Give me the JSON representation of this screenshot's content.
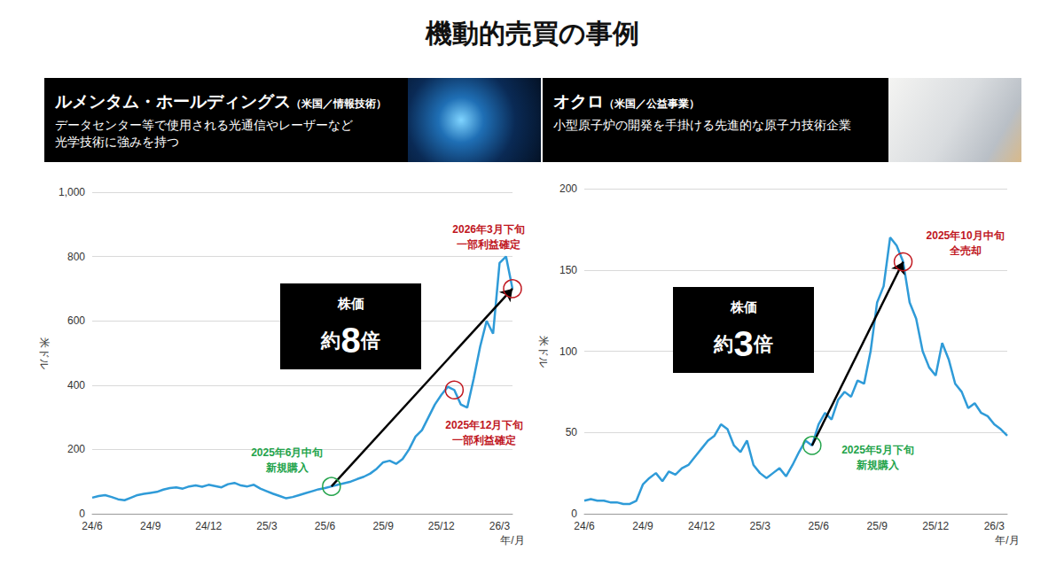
{
  "title": "機動的売買の事例",
  "chart_data": [
    {
      "type": "line",
      "title": "ルメンタム・ホールディングス",
      "title_note": "（米国／情報技術）",
      "subtitle": [
        "データセンター等で使用される光通信やレーザーなど",
        "光学技術に強みを持つ"
      ],
      "x_label": "年/月",
      "y_label": "米ドル",
      "categories": [
        "24/6",
        null,
        null,
        null,
        null,
        null,
        null,
        null,
        null,
        "24/9",
        null,
        null,
        null,
        null,
        null,
        null,
        null,
        null,
        "24/12",
        null,
        null,
        null,
        null,
        null,
        null,
        null,
        null,
        "25/3",
        null,
        null,
        null,
        null,
        null,
        null,
        null,
        null,
        "25/6",
        null,
        null,
        null,
        null,
        null,
        null,
        null,
        null,
        "25/9",
        null,
        null,
        null,
        null,
        null,
        null,
        null,
        null,
        "25/12",
        null,
        null,
        null,
        null,
        null,
        null,
        null,
        null,
        "26/3",
        null,
        null
      ],
      "values": [
        50,
        55,
        58,
        52,
        45,
        42,
        50,
        58,
        62,
        65,
        68,
        75,
        80,
        82,
        78,
        85,
        88,
        84,
        90,
        86,
        82,
        92,
        96,
        88,
        85,
        90,
        78,
        70,
        62,
        55,
        48,
        52,
        58,
        64,
        70,
        76,
        80,
        85,
        90,
        95,
        100,
        108,
        115,
        125,
        140,
        160,
        165,
        155,
        170,
        200,
        240,
        260,
        300,
        340,
        370,
        395,
        385,
        340,
        330,
        420,
        520,
        600,
        560,
        780,
        800,
        700
      ],
      "color": "#2f9bd8",
      "ylim": [
        0,
        1000
      ],
      "yticks": [
        0,
        200,
        400,
        600,
        800,
        {
          "value": 1000,
          "label": "1,000"
        }
      ],
      "grid": true,
      "annotations": [
        {
          "index": 37,
          "color": "#22a34a",
          "text": [
            "2025年6月中旬",
            "新規購入"
          ]
        },
        {
          "index": 56,
          "color": "#c0161e",
          "text": [
            "2025年12月下旬",
            "一部利益確定"
          ]
        },
        {
          "index": 65,
          "color": "#c0161e",
          "text": [
            "2026年3月下旬",
            "一部利益確定"
          ]
        }
      ],
      "callout": {
        "title": "株価",
        "prefix": "約",
        "value": 8,
        "suffix": "倍"
      }
    },
    {
      "type": "line",
      "title": "オクロ",
      "title_note": "（米国／公益事業）",
      "subtitle": [
        "小型原子炉の開発を手掛ける先進的な原子力技術企業"
      ],
      "x_label": "年/月",
      "y_label": "米ドル",
      "categories": [
        "24/6",
        null,
        null,
        null,
        null,
        null,
        null,
        null,
        null,
        "24/9",
        null,
        null,
        null,
        null,
        null,
        null,
        null,
        null,
        "24/12",
        null,
        null,
        null,
        null,
        null,
        null,
        null,
        null,
        "25/3",
        null,
        null,
        null,
        null,
        null,
        null,
        null,
        null,
        "25/6",
        null,
        null,
        null,
        null,
        null,
        null,
        null,
        null,
        "25/9",
        null,
        null,
        null,
        null,
        null,
        null,
        null,
        null,
        "25/12",
        null,
        null,
        null,
        null,
        null,
        null,
        null,
        null,
        "26/3",
        null,
        null
      ],
      "values": [
        8,
        9,
        8,
        8,
        7,
        7,
        6,
        6,
        8,
        18,
        22,
        25,
        20,
        26,
        24,
        28,
        30,
        35,
        40,
        45,
        48,
        55,
        52,
        42,
        38,
        45,
        30,
        25,
        22,
        25,
        28,
        23,
        30,
        38,
        45,
        42,
        55,
        62,
        58,
        70,
        75,
        72,
        82,
        80,
        100,
        130,
        140,
        170,
        165,
        155,
        130,
        120,
        100,
        90,
        85,
        105,
        95,
        80,
        75,
        65,
        68,
        62,
        60,
        55,
        52,
        48
      ],
      "color": "#2f9bd8",
      "ylim": [
        0,
        200
      ],
      "yticks": [
        0,
        50,
        100,
        150,
        200
      ],
      "grid": true,
      "annotations": [
        {
          "index": 35,
          "color": "#22a34a",
          "text": [
            "2025年5月下旬",
            "新規購入"
          ]
        },
        {
          "index": 49,
          "color": "#c0161e",
          "text": [
            "2025年10月中旬",
            "全売却"
          ]
        }
      ],
      "callout": {
        "title": "株価",
        "prefix": "約",
        "value": 3,
        "suffix": "倍"
      }
    }
  ]
}
